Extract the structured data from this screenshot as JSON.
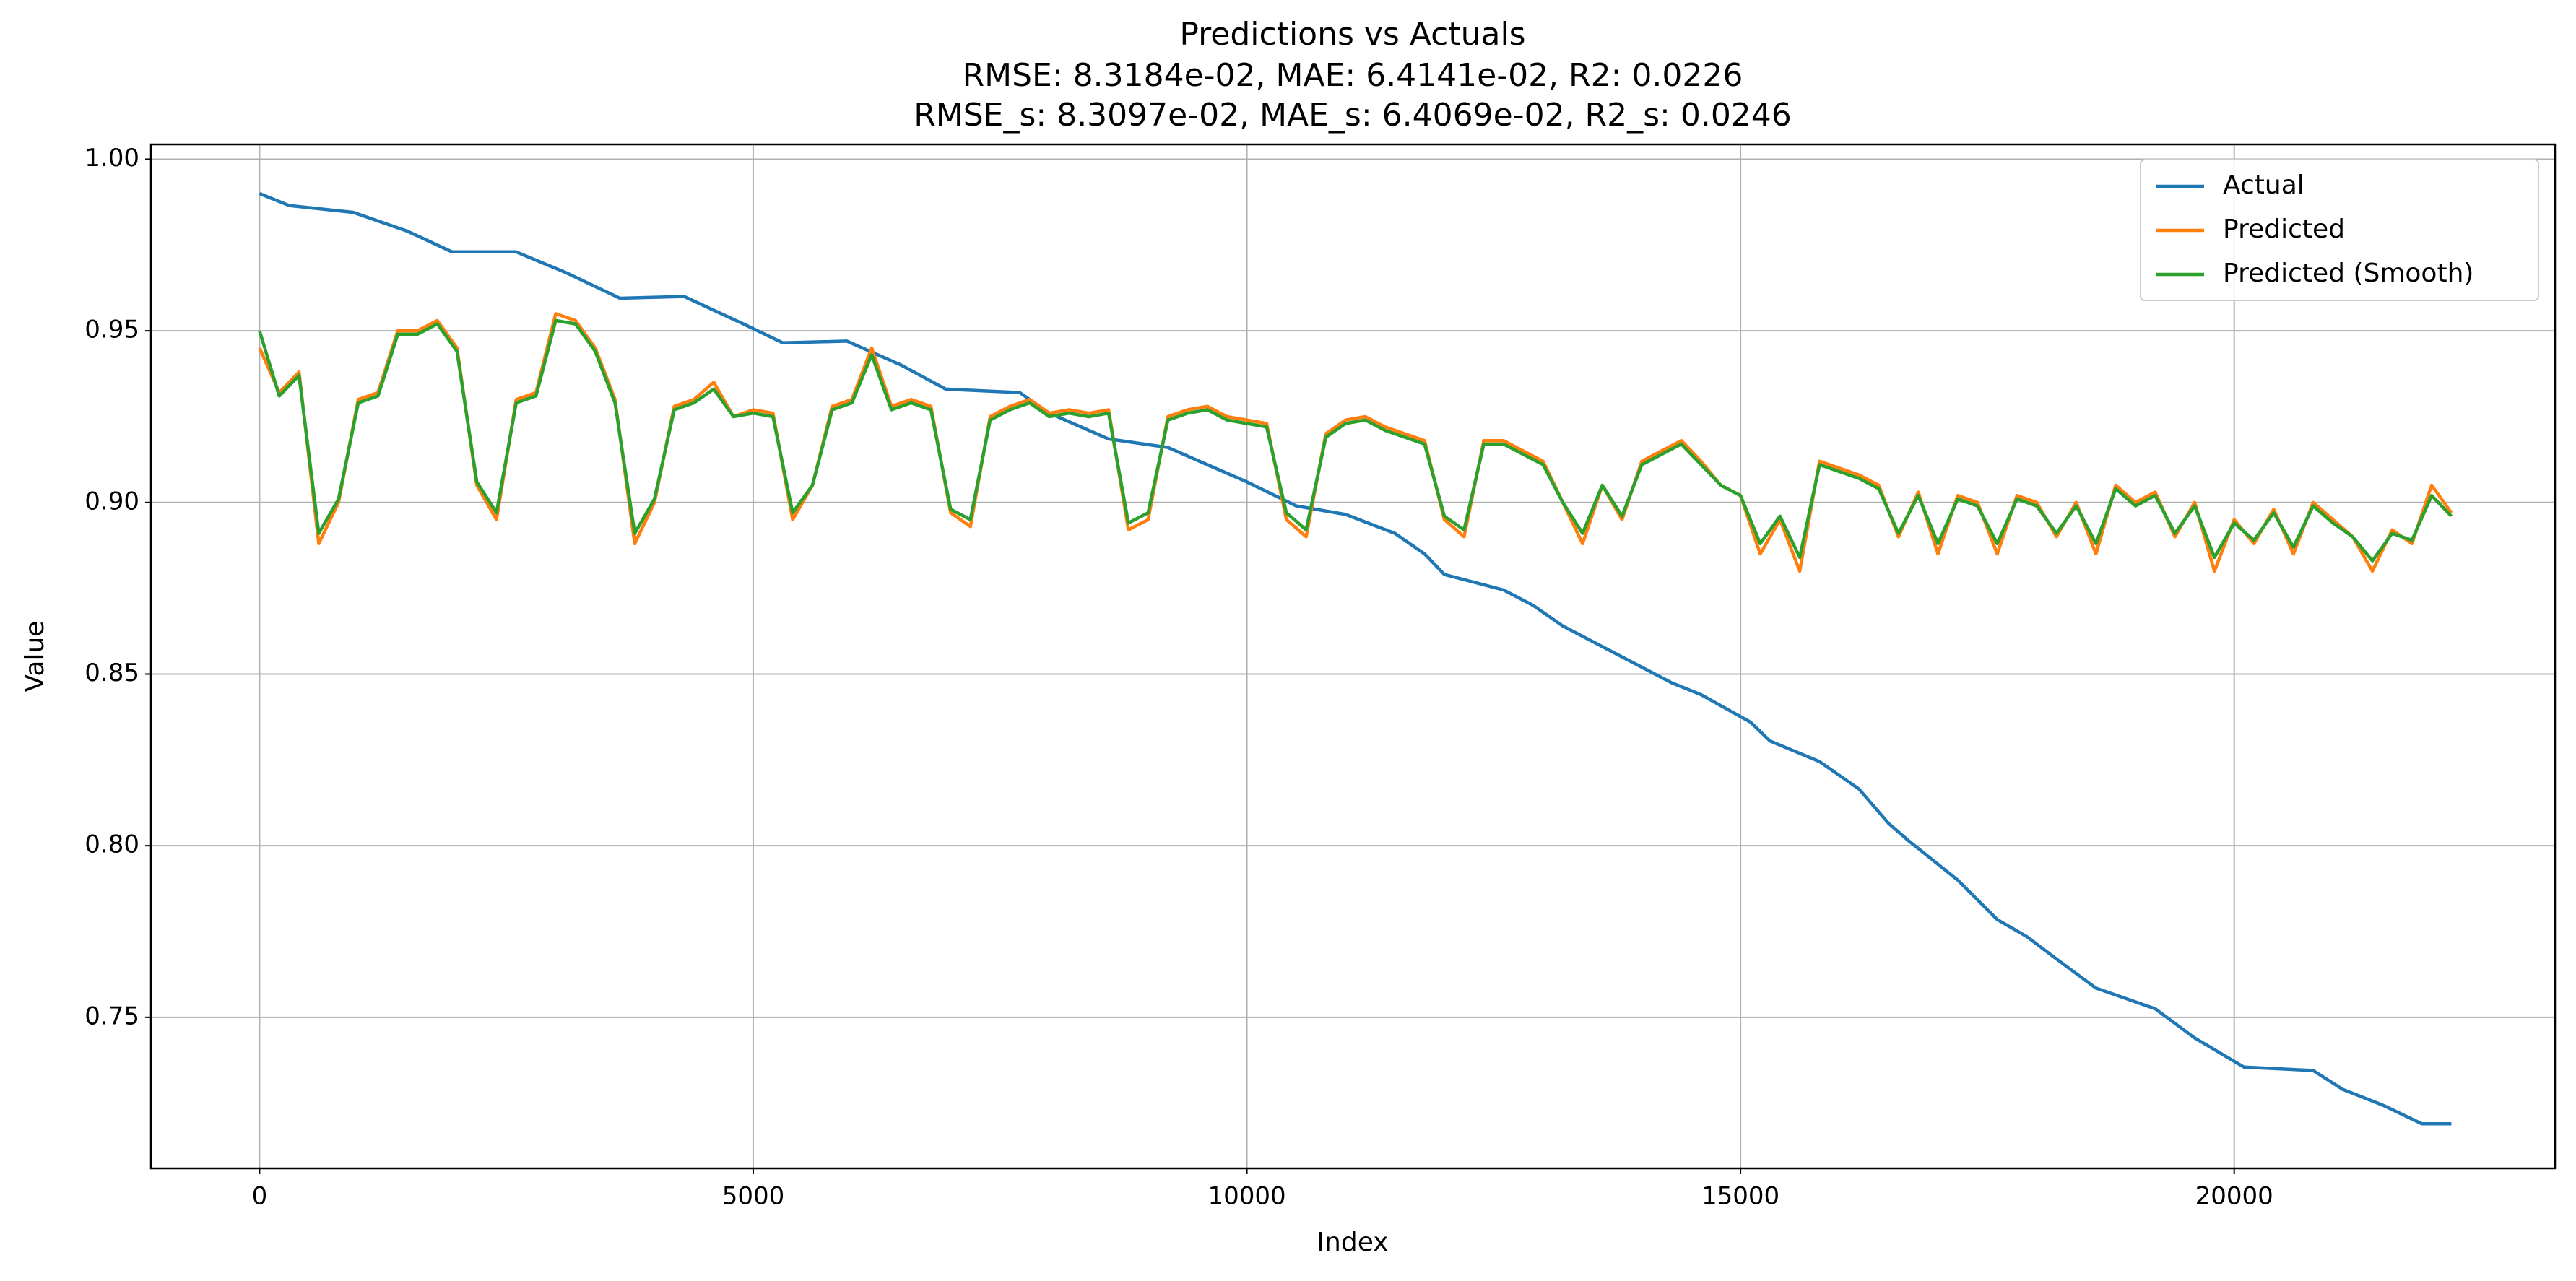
{
  "chart_data": {
    "type": "line",
    "title": "Predictions vs Actuals",
    "subtitle_lines": [
      "RMSE: 8.3184e-02, MAE: 6.4141e-02, R2: 0.0226",
      "RMSE_s: 8.3097e-02, MAE_s: 6.4069e-02, R2_s: 0.0246"
    ],
    "x_label": "Index",
    "y_label": "Value",
    "xlim": [
      -1100,
      23250
    ],
    "ylim": [
      0.706,
      1.0043
    ],
    "xticks": [
      0,
      5000,
      10000,
      15000,
      20000
    ],
    "yticks": [
      0.75,
      {
        "value": 0.8,
        "label": "0.80"
      },
      0.85,
      {
        "value": 0.9,
        "label": "0.90"
      },
      0.95,
      {
        "value": 1.0,
        "label": "1.00"
      }
    ],
    "grid": true,
    "legend": "upper right",
    "series": [
      {
        "name": "Actual",
        "color": "#1f77b4",
        "x": [
          0,
          300,
          950,
          1500,
          1950,
          2600,
          3100,
          3650,
          4300,
          4900,
          5300,
          5950,
          6500,
          6950,
          7700,
          8000,
          8600,
          9200,
          9600,
          10000,
          10500,
          11000,
          11500,
          11800,
          12000,
          12600,
          12900,
          13200,
          13700,
          14300,
          14600,
          15100,
          15300,
          15800,
          16200,
          16500,
          16700,
          17200,
          17600,
          17900,
          18200,
          18600,
          19200,
          19600,
          20100,
          20800,
          21100,
          21500,
          21900,
          22200
        ],
        "values": [
          0.99,
          0.9865,
          0.9845,
          0.979,
          0.973,
          0.973,
          0.967,
          0.9595,
          0.96,
          0.952,
          0.9465,
          0.947,
          0.94,
          0.933,
          0.932,
          0.926,
          0.9185,
          0.916,
          0.911,
          0.906,
          0.899,
          0.8965,
          0.891,
          0.885,
          0.879,
          0.8745,
          0.87,
          0.864,
          0.8565,
          0.8475,
          0.844,
          0.836,
          0.8305,
          0.8245,
          0.8165,
          0.8065,
          0.8015,
          0.79,
          0.7785,
          0.7735,
          0.767,
          0.7585,
          0.7525,
          0.744,
          0.7355,
          0.7345,
          0.729,
          0.7245,
          0.719,
          0.719
        ]
      },
      {
        "name": "Predicted",
        "color": "#ff7f0e",
        "x": [
          0,
          200,
          400,
          600,
          800,
          1000,
          1200,
          1400,
          1600,
          1800,
          2000,
          2200,
          2400,
          2600,
          2800,
          3000,
          3200,
          3400,
          3600,
          3800,
          4000,
          4200,
          4400,
          4600,
          4800,
          5000,
          5200,
          5400,
          5600,
          5800,
          6000,
          6200,
          6400,
          6600,
          6800,
          7000,
          7200,
          7400,
          7600,
          7800,
          8000,
          8200,
          8400,
          8600,
          8800,
          9000,
          9200,
          9400,
          9600,
          9800,
          10000,
          10200,
          10400,
          10600,
          10800,
          11000,
          11200,
          11400,
          11600,
          11800,
          12000,
          12200,
          12400,
          12600,
          12800,
          13000,
          13200,
          13400,
          13600,
          13800,
          14000,
          14200,
          14400,
          14600,
          14800,
          15000,
          15200,
          15400,
          15600,
          15800,
          16000,
          16200,
          16400,
          16600,
          16800,
          17000,
          17200,
          17400,
          17600,
          17800,
          18000,
          18200,
          18400,
          18600,
          18800,
          19000,
          19200,
          19400,
          19600,
          19800,
          20000,
          20200,
          20400,
          20600,
          20800,
          21000,
          21200,
          21400,
          21600,
          21800,
          22000,
          22200
        ],
        "values": [
          0.945,
          0.932,
          0.938,
          0.888,
          0.9,
          0.93,
          0.932,
          0.95,
          0.95,
          0.953,
          0.945,
          0.905,
          0.895,
          0.93,
          0.932,
          0.955,
          0.953,
          0.945,
          0.93,
          0.888,
          0.9,
          0.928,
          0.93,
          0.935,
          0.925,
          0.927,
          0.926,
          0.895,
          0.905,
          0.928,
          0.93,
          0.945,
          0.928,
          0.93,
          0.928,
          0.897,
          0.893,
          0.925,
          0.928,
          0.93,
          0.926,
          0.927,
          0.926,
          0.927,
          0.892,
          0.895,
          0.925,
          0.927,
          0.928,
          0.925,
          0.924,
          0.923,
          0.895,
          0.89,
          0.92,
          0.924,
          0.925,
          0.922,
          0.92,
          0.918,
          0.895,
          0.89,
          0.918,
          0.918,
          0.915,
          0.912,
          0.9,
          0.888,
          0.905,
          0.895,
          0.912,
          0.915,
          0.918,
          0.912,
          0.905,
          0.902,
          0.885,
          0.895,
          0.88,
          0.912,
          0.91,
          0.908,
          0.905,
          0.89,
          0.903,
          0.885,
          0.902,
          0.9,
          0.885,
          0.902,
          0.9,
          0.89,
          0.9,
          0.885,
          0.905,
          0.9,
          0.903,
          0.89,
          0.9,
          0.88,
          0.895,
          0.888,
          0.898,
          0.885,
          0.9,
          0.895,
          0.89,
          0.88,
          0.892,
          0.888,
          0.905,
          0.897
        ]
      },
      {
        "name": "Predicted (Smooth)",
        "color": "#2ca02c",
        "x": [
          0,
          200,
          400,
          600,
          800,
          1000,
          1200,
          1400,
          1600,
          1800,
          2000,
          2200,
          2400,
          2600,
          2800,
          3000,
          3200,
          3400,
          3600,
          3800,
          4000,
          4200,
          4400,
          4600,
          4800,
          5000,
          5200,
          5400,
          5600,
          5800,
          6000,
          6200,
          6400,
          6600,
          6800,
          7000,
          7200,
          7400,
          7600,
          7800,
          8000,
          8200,
          8400,
          8600,
          8800,
          9000,
          9200,
          9400,
          9600,
          9800,
          10000,
          10200,
          10400,
          10600,
          10800,
          11000,
          11200,
          11400,
          11600,
          11800,
          12000,
          12200,
          12400,
          12600,
          12800,
          13000,
          13200,
          13400,
          13600,
          13800,
          14000,
          14200,
          14400,
          14600,
          14800,
          15000,
          15200,
          15400,
          15600,
          15800,
          16000,
          16200,
          16400,
          16600,
          16800,
          17000,
          17200,
          17400,
          17600,
          17800,
          18000,
          18200,
          18400,
          18600,
          18800,
          19000,
          19200,
          19400,
          19600,
          19800,
          20000,
          20200,
          20400,
          20600,
          20800,
          21000,
          21200,
          21400,
          21600,
          21800,
          22000,
          22200
        ],
        "values": [
          0.95,
          0.931,
          0.937,
          0.891,
          0.901,
          0.929,
          0.931,
          0.949,
          0.949,
          0.952,
          0.944,
          0.906,
          0.897,
          0.929,
          0.931,
          0.953,
          0.952,
          0.944,
          0.929,
          0.891,
          0.901,
          0.927,
          0.929,
          0.933,
          0.925,
          0.926,
          0.925,
          0.897,
          0.905,
          0.927,
          0.929,
          0.943,
          0.927,
          0.929,
          0.927,
          0.898,
          0.895,
          0.924,
          0.927,
          0.929,
          0.925,
          0.926,
          0.925,
          0.926,
          0.894,
          0.897,
          0.924,
          0.926,
          0.927,
          0.924,
          0.923,
          0.922,
          0.897,
          0.892,
          0.919,
          0.923,
          0.924,
          0.921,
          0.919,
          0.917,
          0.896,
          0.892,
          0.917,
          0.917,
          0.914,
          0.911,
          0.9,
          0.891,
          0.905,
          0.896,
          0.911,
          0.914,
          0.917,
          0.911,
          0.905,
          0.902,
          0.888,
          0.896,
          0.884,
          0.911,
          0.909,
          0.907,
          0.904,
          0.891,
          0.902,
          0.888,
          0.901,
          0.899,
          0.888,
          0.901,
          0.899,
          0.891,
          0.899,
          0.888,
          0.904,
          0.899,
          0.902,
          0.891,
          0.899,
          0.884,
          0.894,
          0.889,
          0.897,
          0.887,
          0.899,
          0.894,
          0.89,
          0.883,
          0.891,
          0.889,
          0.902,
          0.896
        ]
      }
    ]
  }
}
